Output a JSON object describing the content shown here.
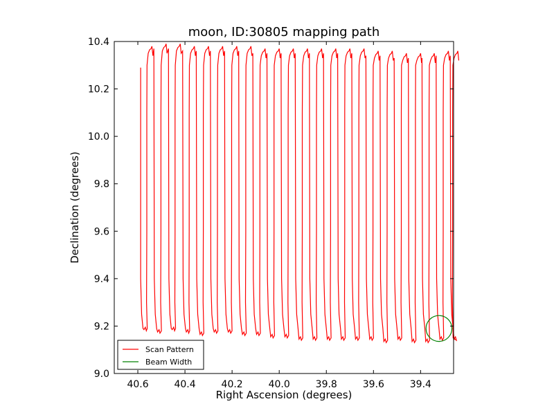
{
  "chart_data": {
    "type": "line",
    "title": "moon, ID:30805 mapping path",
    "xlabel": "Right Ascension (degrees)",
    "ylabel": "Declination (degrees)",
    "xlim": [
      40.7,
      39.26
    ],
    "ylim": [
      9.0,
      10.4
    ],
    "x_axis_inverted": true,
    "xticks": [
      40.6,
      40.4,
      40.2,
      40.0,
      39.8,
      39.6,
      39.4
    ],
    "xtick_labels": [
      "40.6",
      "40.4",
      "40.2",
      "40.0",
      "39.8",
      "39.6",
      "39.4"
    ],
    "yticks": [
      9.0,
      9.2,
      9.4,
      9.6,
      9.8,
      10.0,
      10.2,
      10.4
    ],
    "ytick_labels": [
      "9.0",
      "9.2",
      "9.4",
      "9.6",
      "9.8",
      "10.0",
      "10.2",
      "10.4"
    ],
    "grid": false,
    "legend_position": "bottom-left",
    "colors": {
      "scan": "#ff0000",
      "beam": "#008000"
    },
    "scan_path": {
      "start": [
        40.588,
        10.29
      ],
      "left_end_x": [
        40.588,
        40.53,
        40.468,
        40.408,
        40.35,
        40.29,
        40.23,
        40.17,
        40.11,
        40.05,
        39.99,
        39.93,
        39.87,
        39.81,
        39.75,
        39.69,
        39.63,
        39.57,
        39.51,
        39.45,
        39.392,
        39.332,
        39.272
      ],
      "right_end_x": [
        40.56,
        40.5,
        40.44,
        40.38,
        40.32,
        40.26,
        40.2,
        40.14,
        40.08,
        40.02,
        39.96,
        39.9,
        39.84,
        39.78,
        39.72,
        39.66,
        39.6,
        39.54,
        39.48,
        39.42,
        39.362,
        39.302,
        39.262
      ],
      "bottom_y": [
        9.18,
        9.17,
        9.18,
        9.17,
        9.16,
        9.17,
        9.17,
        9.16,
        9.16,
        9.15,
        9.15,
        9.14,
        9.14,
        9.14,
        9.14,
        9.14,
        9.14,
        9.13,
        9.14,
        9.13,
        9.13,
        9.14,
        9.14
      ],
      "top_y": [
        10.37,
        10.38,
        10.38,
        10.37,
        10.37,
        10.37,
        10.37,
        10.37,
        10.36,
        10.36,
        10.36,
        10.36,
        10.36,
        10.36,
        10.36,
        10.36,
        10.35,
        10.35,
        10.34,
        10.34,
        10.34,
        10.35,
        10.35
      ]
    },
    "beam_width_circle": {
      "center": [
        39.322,
        9.19
      ],
      "radius_deg": 0.055
    },
    "series": [
      {
        "name": "Scan Pattern",
        "color": "#ff0000"
      },
      {
        "name": "Beam Width",
        "color": "#008000"
      }
    ]
  }
}
